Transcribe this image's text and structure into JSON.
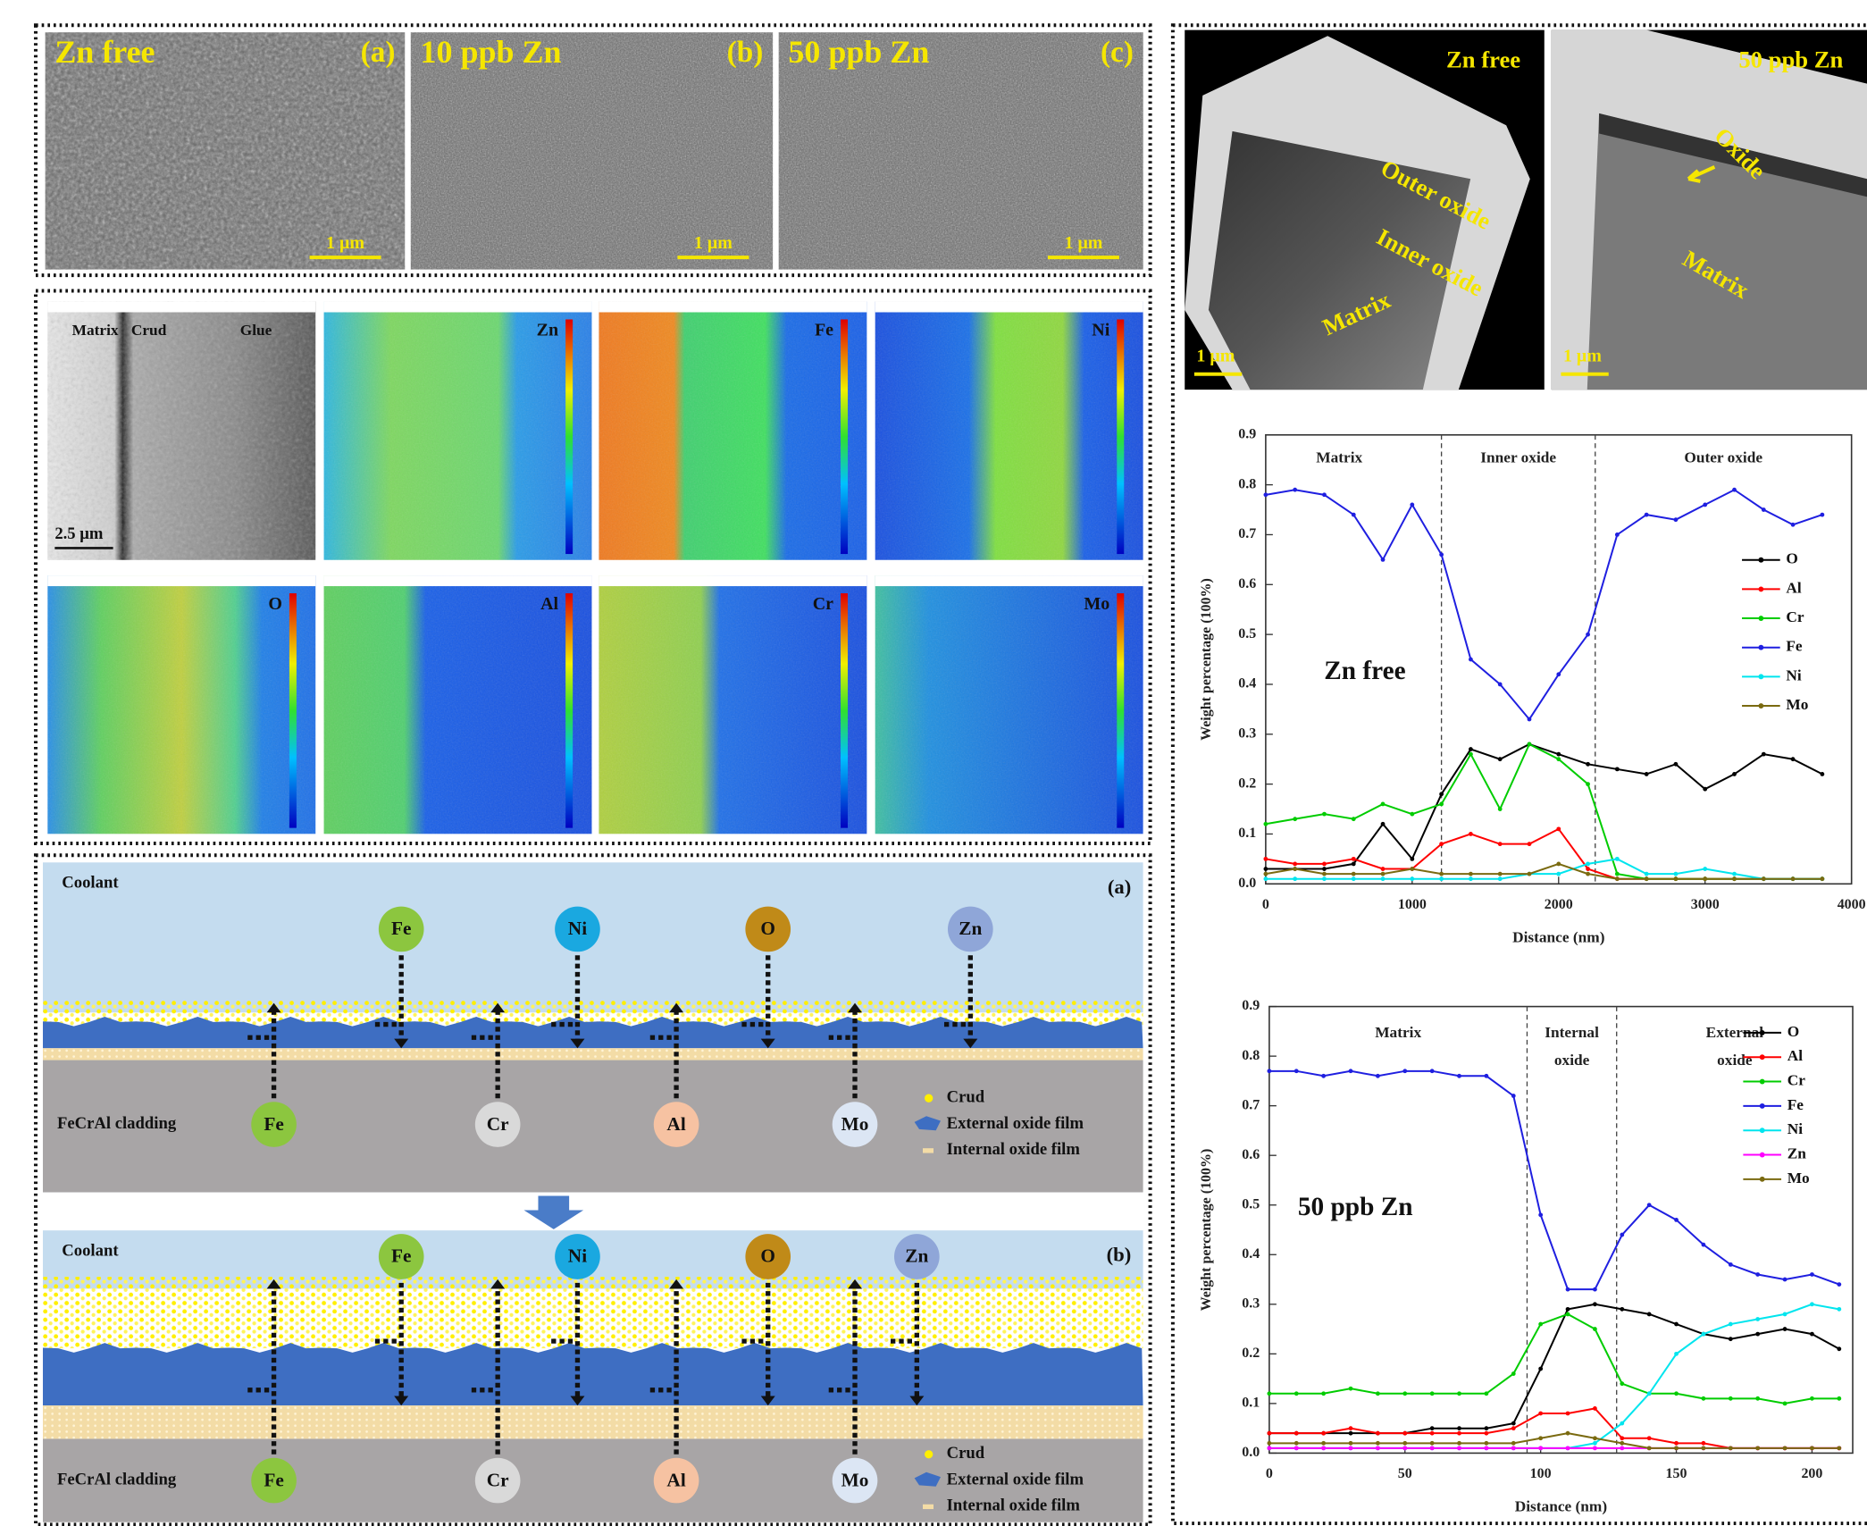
{
  "sem_panels": [
    {
      "title": "Zn free",
      "tag": "(a)",
      "scale": "1 μm"
    },
    {
      "title": "10 ppb Zn",
      "tag": "(b)",
      "scale": "1 μm"
    },
    {
      "title": "50 ppb Zn",
      "tag": "(c)",
      "scale": "1 μm"
    }
  ],
  "eds_maps": {
    "labels": [
      "Matrix",
      "Crud",
      "Glue"
    ],
    "scale": "2.5 μm",
    "elements": [
      "Zn",
      "Fe",
      "Ni",
      "O",
      "Al",
      "Cr",
      "Mo"
    ]
  },
  "tem_panels": [
    {
      "title": "Zn free",
      "labels": [
        "Outer oxide",
        "Inner oxide",
        "Matrix"
      ],
      "scale": "1 μm"
    },
    {
      "title": "50 ppb Zn",
      "labels": [
        "Oxide",
        "Matrix"
      ],
      "scale": "1 μm"
    }
  ],
  "schematics": [
    {
      "medium": "Coolant",
      "tag": "(a)",
      "top_ions": [
        "Fe",
        "Ni",
        "O",
        "Zn"
      ],
      "bottom_ions": [
        "Fe",
        "Cr",
        "Al",
        "Mo"
      ],
      "substrate": "FeCrAl cladding",
      "legend": [
        "Crud",
        "External  oxide film",
        "Internal  oxide film"
      ]
    },
    {
      "medium": "Coolant",
      "tag": "(b)",
      "top_ions": [
        "Fe",
        "Ni",
        "O",
        "Zn"
      ],
      "bottom_ions": [
        "Fe",
        "Cr",
        "Al",
        "Mo"
      ],
      "substrate": "FeCrAl cladding",
      "legend": [
        "Crud",
        "External  oxide film",
        "Internal  oxide film"
      ]
    }
  ],
  "chart_data": [
    {
      "type": "line",
      "annotation": "Zn free",
      "xlabel": "Distance (nm)",
      "ylabel": "Weight percentage (100%)",
      "xlim": [
        0,
        4000
      ],
      "xticks": [
        0,
        1000,
        2000,
        3000,
        4000
      ],
      "ylim": [
        0,
        0.9
      ],
      "yticks": [
        {
          "value": 0,
          "label": "0.0"
        },
        0.1,
        0.2,
        0.3,
        0.4,
        0.5,
        0.6,
        0.7,
        0.8,
        0.9
      ],
      "boundaries": [
        1200,
        2250
      ],
      "region_labels": [
        [
          "Matrix"
        ],
        [
          "Inner oxide"
        ],
        [
          "Outer oxide"
        ]
      ],
      "legend": "right",
      "x": [
        0,
        200,
        400,
        600,
        800,
        1000,
        1200,
        1400,
        1600,
        1800,
        2000,
        2200,
        2400,
        2600,
        2800,
        3000,
        3200,
        3400,
        3600,
        3800
      ],
      "series": [
        {
          "name": "O",
          "color": "#000000",
          "values": [
            0.03,
            0.03,
            0.03,
            0.04,
            0.12,
            0.05,
            0.18,
            0.27,
            0.25,
            0.28,
            0.26,
            0.24,
            0.23,
            0.22,
            0.24,
            0.19,
            0.22,
            0.26,
            0.25,
            0.22
          ]
        },
        {
          "name": "Al",
          "color": "#ff0000",
          "values": [
            0.05,
            0.04,
            0.04,
            0.05,
            0.03,
            0.03,
            0.08,
            0.1,
            0.08,
            0.08,
            0.11,
            0.03,
            0.01,
            0.01,
            0.01,
            0.01,
            0.01,
            0.01,
            0.01,
            0.01
          ]
        },
        {
          "name": "Cr",
          "color": "#00cc00",
          "values": [
            0.12,
            0.13,
            0.14,
            0.13,
            0.16,
            0.14,
            0.16,
            0.26,
            0.15,
            0.28,
            0.25,
            0.2,
            0.02,
            0.01,
            0.01,
            0.01,
            0.01,
            0.01,
            0.01,
            0.01
          ]
        },
        {
          "name": "Fe",
          "color": "#1f1fe0",
          "values": [
            0.78,
            0.79,
            0.78,
            0.74,
            0.65,
            0.76,
            0.66,
            0.45,
            0.4,
            0.33,
            0.42,
            0.5,
            0.7,
            0.74,
            0.73,
            0.76,
            0.79,
            0.75,
            0.72,
            0.74
          ]
        },
        {
          "name": "Ni",
          "color": "#00e5ee",
          "values": [
            0.01,
            0.01,
            0.01,
            0.01,
            0.01,
            0.01,
            0.01,
            0.01,
            0.01,
            0.02,
            0.02,
            0.04,
            0.05,
            0.02,
            0.02,
            0.03,
            0.02,
            0.01,
            0.01,
            0.01
          ]
        },
        {
          "name": "Mo",
          "color": "#7a6a10",
          "values": [
            0.02,
            0.03,
            0.02,
            0.02,
            0.02,
            0.03,
            0.02,
            0.02,
            0.02,
            0.02,
            0.04,
            0.02,
            0.01,
            0.01,
            0.01,
            0.01,
            0.01,
            0.01,
            0.01,
            0.01
          ]
        }
      ]
    },
    {
      "type": "line",
      "annotation": "50 ppb Zn",
      "xlabel": "Distance (nm)",
      "ylabel": "Weight percentage (100%)",
      "xlim": [
        0,
        215
      ],
      "xticks": [
        0,
        50,
        100,
        150,
        200
      ],
      "ylim": [
        0,
        0.9
      ],
      "yticks": [
        {
          "value": 0,
          "label": "0.0"
        },
        0.1,
        0.2,
        0.3,
        0.4,
        0.5,
        0.6,
        0.7,
        0.8,
        0.9
      ],
      "boundaries": [
        95,
        128
      ],
      "region_labels": [
        [
          "Matrix"
        ],
        [
          "Internal",
          "oxide"
        ],
        [
          "External",
          "oxide"
        ]
      ],
      "legend": "upper right",
      "x": [
        0,
        10,
        20,
        30,
        40,
        50,
        60,
        70,
        80,
        90,
        100,
        110,
        120,
        130,
        140,
        150,
        160,
        170,
        180,
        190,
        200,
        210
      ],
      "series": [
        {
          "name": "O",
          "color": "#000000",
          "values": [
            0.04,
            0.04,
            0.04,
            0.04,
            0.04,
            0.04,
            0.05,
            0.05,
            0.05,
            0.06,
            0.17,
            0.29,
            0.3,
            0.29,
            0.28,
            0.26,
            0.24,
            0.23,
            0.24,
            0.25,
            0.24,
            0.21
          ]
        },
        {
          "name": "Al",
          "color": "#ff0000",
          "values": [
            0.04,
            0.04,
            0.04,
            0.05,
            0.04,
            0.04,
            0.04,
            0.04,
            0.04,
            0.05,
            0.08,
            0.08,
            0.09,
            0.03,
            0.03,
            0.02,
            0.02,
            0.01,
            0.01,
            0.01,
            0.01,
            0.01
          ]
        },
        {
          "name": "Cr",
          "color": "#00cc00",
          "values": [
            0.12,
            0.12,
            0.12,
            0.13,
            0.12,
            0.12,
            0.12,
            0.12,
            0.12,
            0.16,
            0.26,
            0.28,
            0.25,
            0.14,
            0.12,
            0.12,
            0.11,
            0.11,
            0.11,
            0.1,
            0.11,
            0.11
          ]
        },
        {
          "name": "Fe",
          "color": "#1f1fe0",
          "values": [
            0.77,
            0.77,
            0.76,
            0.77,
            0.76,
            0.77,
            0.77,
            0.76,
            0.76,
            0.72,
            0.48,
            0.33,
            0.33,
            0.44,
            0.5,
            0.47,
            0.42,
            0.38,
            0.36,
            0.35,
            0.36,
            0.34
          ]
        },
        {
          "name": "Ni",
          "color": "#00e5ee",
          "values": [
            0.01,
            0.01,
            0.01,
            0.01,
            0.01,
            0.01,
            0.01,
            0.01,
            0.01,
            0.01,
            0.01,
            0.01,
            0.02,
            0.06,
            0.12,
            0.2,
            0.24,
            0.26,
            0.27,
            0.28,
            0.3,
            0.29
          ]
        },
        {
          "name": "Zn",
          "color": "#ff00ff",
          "values": [
            0.01,
            0.01,
            0.01,
            0.01,
            0.01,
            0.01,
            0.01,
            0.01,
            0.01,
            0.01,
            0.01,
            0.01,
            0.01,
            0.01,
            0.01,
            0.01,
            0.01,
            0.01,
            0.01,
            0.01,
            0.01,
            0.01
          ]
        },
        {
          "name": "Mo",
          "color": "#7a6a10",
          "values": [
            0.02,
            0.02,
            0.02,
            0.02,
            0.02,
            0.02,
            0.02,
            0.02,
            0.02,
            0.02,
            0.03,
            0.04,
            0.03,
            0.02,
            0.01,
            0.01,
            0.01,
            0.01,
            0.01,
            0.01,
            0.01,
            0.01
          ]
        }
      ]
    }
  ]
}
